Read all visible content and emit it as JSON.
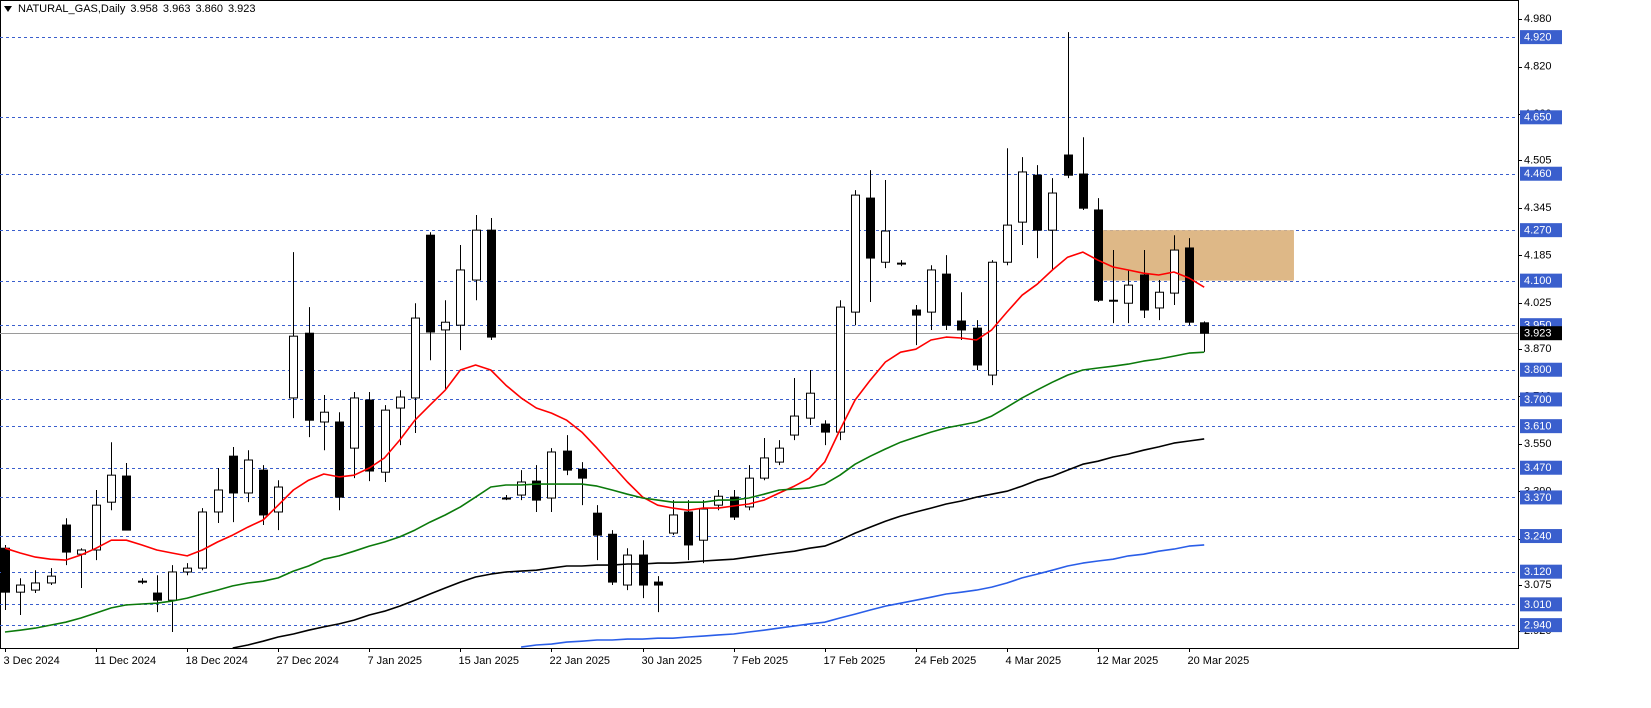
{
  "chart_data": {
    "type": "candlestick",
    "header": {
      "symbol": "NATURAL_GAS,Daily",
      "ohlc": [
        3.958,
        3.963,
        {
          "value": 3.86,
          "label": "3.860"
        },
        3.923
      ]
    },
    "x": [
      "3 Dec 2024",
      null,
      null,
      null,
      null,
      null,
      "11 Dec 2024",
      null,
      null,
      null,
      null,
      null,
      "18 Dec 2024",
      null,
      null,
      null,
      null,
      null,
      "27 Dec 2024",
      null,
      null,
      null,
      null,
      null,
      "7 Jan 2025",
      null,
      null,
      null,
      null,
      null,
      "15 Jan 2025",
      null,
      null,
      null,
      null,
      null,
      "22 Jan 2025",
      null,
      null,
      null,
      null,
      null,
      "30 Jan 2025",
      null,
      null,
      null,
      null,
      null,
      "7 Feb 2025",
      null,
      null,
      null,
      null,
      null,
      "17 Feb 2025",
      null,
      null,
      null,
      null,
      null,
      "24 Feb 2025",
      null,
      null,
      null,
      null,
      null,
      "4 Mar 2025",
      null,
      null,
      null,
      null,
      null,
      "12 Mar 2025",
      null,
      null,
      null,
      null,
      null,
      "20 Mar 2025",
      null
    ],
    "open": [
      3.199,
      3.051,
      3.058,
      3.082,
      3.277,
      3.179,
      3.193,
      3.354,
      3.442,
      3.088,
      3.048,
      3.024,
      3.119,
      3.132,
      3.321,
      3.509,
      3.385,
      3.462,
      3.321,
      3.705,
      3.923,
      3.624,
      3.624,
      3.536,
      3.698,
      3.455,
      3.671,
      3.705,
      4.253,
      3.934,
      3.95,
      4.102,
      4.27,
      3.368,
      3.378,
      3.425,
      3.368,
      3.526,
      3.465,
      3.317,
      3.246,
      3.075,
      3.176,
      3.085,
      3.25,
      3.321,
      3.226,
      3.344,
      3.371,
      3.338,
      3.435,
      3.489,
      3.58,
      3.637,
      3.617,
      3.59,
      3.994,
      4.378,
      4.162,
      4.159,
      4.001,
      3.994,
      4.122,
      3.964,
      3.94,
      3.782,
      4.162,
      4.297,
      4.455,
      4.27,
      4.523,
      4.459,
      4.338,
      4.034,
      4.024,
      4.119,
      4.008,
      4.058,
      4.21,
      3.958
    ],
    "high": [
      3.21,
      3.098,
      3.125,
      3.132,
      3.3,
      3.199,
      3.395,
      3.556,
      3.486,
      3.098,
      3.108,
      3.142,
      3.149,
      3.334,
      3.469,
      3.54,
      3.529,
      3.479,
      3.428,
      4.196,
      4.011,
      3.715,
      3.657,
      3.725,
      3.725,
      3.681,
      3.731,
      4.024,
      4.263,
      4.034,
      4.22,
      4.321,
      4.311,
      3.378,
      3.462,
      3.479,
      3.536,
      3.58,
      3.489,
      3.344,
      3.26,
      3.199,
      3.226,
      3.105,
      3.361,
      3.361,
      3.361,
      3.395,
      3.395,
      3.479,
      3.57,
      3.563,
      3.772,
      3.799,
      3.63,
      4.034,
      4.405,
      4.472,
      4.439,
      4.169,
      4.018,
      4.152,
      4.186,
      4.061,
      3.967,
      4.169,
      4.546,
      4.516,
      4.489,
      4.445,
      4.937,
      4.583,
      4.378,
      4.203,
      4.136,
      4.203,
      4.102,
      4.253,
      4.243,
      3.963
    ],
    "low": [
      2.991,
      2.974,
      3.048,
      3.075,
      3.142,
      3.065,
      3.159,
      3.327,
      3.26,
      3.078,
      2.984,
      2.917,
      3.108,
      3.125,
      3.284,
      3.287,
      3.354,
      3.277,
      3.26,
      3.637,
      3.573,
      3.529,
      3.327,
      3.435,
      3.425,
      3.422,
      3.546,
      3.587,
      3.832,
      3.731,
      3.866,
      4.034,
      3.9,
      3.361,
      3.361,
      3.321,
      3.321,
      3.445,
      3.344,
      3.159,
      3.075,
      3.058,
      3.031,
      2.984,
      3.243,
      3.159,
      3.149,
      3.327,
      3.294,
      3.327,
      3.428,
      3.479,
      3.563,
      3.614,
      3.546,
      3.563,
      3.95,
      4.028,
      4.142,
      4.149,
      3.883,
      3.934,
      3.934,
      3.9,
      3.799,
      3.748,
      4.152,
      4.22,
      4.176,
      4.136,
      4.445,
      4.338,
      4.028,
      3.957,
      3.957,
      3.974,
      3.967,
      4.018,
      3.95,
      3.86
    ],
    "close": [
      3.051,
      3.075,
      3.082,
      3.105,
      3.186,
      3.193,
      3.344,
      3.445,
      3.26,
      3.088,
      3.024,
      3.119,
      3.132,
      3.321,
      3.395,
      3.385,
      3.496,
      3.311,
      3.405,
      3.913,
      3.63,
      3.657,
      3.371,
      3.705,
      3.459,
      3.664,
      3.708,
      3.974,
      3.927,
      3.96,
      4.136,
      4.27,
      3.91,
      3.368,
      3.422,
      3.361,
      3.523,
      3.462,
      3.435,
      3.243,
      3.085,
      3.176,
      3.075,
      3.075,
      3.311,
      3.21,
      3.331,
      3.374,
      3.304,
      3.435,
      3.503,
      3.536,
      3.644,
      3.721,
      3.59,
      4.011,
      4.388,
      4.176,
      4.267,
      4.159,
      3.984,
      4.136,
      3.95,
      3.934,
      3.816,
      4.162,
      4.287,
      4.466,
      4.27,
      4.395,
      4.455,
      4.344,
      4.034,
      4.031,
      4.085,
      4.001,
      4.061,
      4.203,
      3.96,
      3.923
    ],
    "up_color": "#ffffff",
    "down_color": "#000000",
    "wick_color": "#000000",
    "series": [
      {
        "color": "#ff0000",
        "values": [
          3.199,
          3.183,
          3.169,
          3.162,
          3.159,
          3.176,
          3.199,
          3.226,
          3.226,
          3.21,
          3.193,
          3.183,
          3.173,
          3.193,
          3.22,
          3.243,
          3.27,
          3.294,
          3.344,
          3.395,
          3.428,
          3.449,
          3.439,
          3.445,
          3.469,
          3.503,
          3.563,
          3.63,
          3.681,
          3.731,
          3.799,
          3.816,
          3.799,
          3.748,
          3.705,
          3.671,
          3.654,
          3.63,
          3.59,
          3.536,
          3.479,
          3.422,
          3.371,
          3.344,
          3.334,
          3.327,
          3.334,
          3.334,
          3.341,
          3.348,
          3.361,
          3.385,
          3.408,
          3.435,
          3.489,
          3.597,
          3.698,
          3.765,
          3.826,
          3.859,
          3.869,
          3.9,
          3.91,
          3.907,
          3.9,
          3.934,
          3.994,
          4.051,
          4.088,
          4.136,
          4.179,
          4.196,
          4.169,
          4.146,
          4.136,
          4.125,
          4.119,
          4.129,
          4.109,
          4.078
        ]
      },
      {
        "color": "#0b7a0b",
        "values": [
          2.917,
          2.923,
          2.93,
          2.94,
          2.95,
          2.964,
          2.981,
          2.998,
          3.008,
          3.011,
          3.014,
          3.021,
          3.031,
          3.045,
          3.058,
          3.072,
          3.082,
          3.088,
          3.099,
          3.122,
          3.139,
          3.162,
          3.173,
          3.189,
          3.206,
          3.22,
          3.237,
          3.26,
          3.287,
          3.311,
          3.338,
          3.371,
          3.405,
          3.412,
          3.412,
          3.415,
          3.415,
          3.415,
          3.415,
          3.408,
          3.395,
          3.381,
          3.368,
          3.361,
          3.354,
          3.354,
          3.354,
          3.361,
          3.361,
          3.368,
          3.381,
          3.395,
          3.398,
          3.402,
          3.415,
          3.445,
          3.482,
          3.509,
          3.533,
          3.556,
          3.573,
          3.59,
          3.604,
          3.614,
          3.624,
          3.644,
          3.674,
          3.705,
          3.732,
          3.758,
          3.782,
          3.799,
          3.806,
          3.812,
          3.819,
          3.829,
          3.836,
          3.846,
          3.856,
          3.859
        ]
      },
      {
        "color": "#000000",
        "values": [
          null,
          null,
          null,
          null,
          null,
          null,
          null,
          null,
          null,
          null,
          null,
          null,
          null,
          null,
          null,
          2.863,
          2.873,
          2.886,
          2.9,
          2.91,
          2.923,
          2.934,
          2.944,
          2.957,
          2.974,
          2.987,
          3.004,
          3.024,
          3.045,
          3.065,
          3.085,
          3.102,
          3.112,
          3.119,
          3.122,
          3.125,
          3.132,
          3.139,
          3.139,
          3.142,
          3.142,
          3.146,
          3.146,
          3.149,
          3.149,
          3.152,
          3.156,
          3.159,
          3.162,
          3.169,
          3.176,
          3.183,
          3.189,
          3.199,
          3.206,
          3.226,
          3.25,
          3.27,
          3.29,
          3.307,
          3.321,
          3.334,
          3.348,
          3.358,
          3.371,
          3.381,
          3.391,
          3.408,
          3.428,
          3.442,
          3.462,
          3.482,
          3.492,
          3.506,
          3.516,
          3.529,
          3.54,
          3.553,
          3.56,
          3.567
        ]
      },
      {
        "color": "#2a5ee8",
        "values": [
          null,
          null,
          null,
          null,
          null,
          null,
          null,
          null,
          null,
          null,
          null,
          null,
          null,
          null,
          null,
          null,
          null,
          null,
          null,
          null,
          null,
          null,
          null,
          null,
          null,
          null,
          null,
          null,
          null,
          null,
          null,
          null,
          null,
          null,
          2.866,
          2.873,
          2.876,
          2.883,
          2.886,
          2.89,
          2.89,
          2.893,
          2.893,
          2.896,
          2.896,
          2.9,
          2.903,
          2.907,
          2.91,
          2.917,
          2.923,
          2.93,
          2.937,
          2.944,
          2.95,
          2.964,
          2.977,
          2.991,
          3.004,
          3.014,
          3.024,
          3.034,
          3.045,
          3.051,
          3.058,
          3.068,
          3.082,
          3.099,
          3.112,
          3.125,
          3.139,
          3.149,
          3.156,
          3.162,
          3.173,
          3.179,
          3.189,
          3.196,
          3.206,
          3.21
        ]
      }
    ],
    "ylim": [
      2.863,
      5.045
    ],
    "yticks": [
      {
        "value": 4.98,
        "label": "4.980"
      },
      {
        "value": 4.82,
        "label": "4.820"
      },
      {
        "value": 4.66,
        "label": "4.660"
      },
      4.505,
      4.345,
      4.185,
      4.025,
      {
        "value": 3.87,
        "label": "3.870"
      },
      {
        "value": 3.71,
        "label": "3.710"
      },
      {
        "value": 3.55,
        "label": "3.550"
      },
      {
        "value": 3.39,
        "label": "3.390"
      },
      {
        "value": 3.23,
        "label": "3.230"
      },
      3.075,
      {
        "value": 2.92,
        "label": "2.920"
      }
    ],
    "level_color": "#3a5fcd",
    "levels": [
      {
        "value": 4.92,
        "label": "4.920"
      },
      {
        "value": 4.65,
        "label": "4.650"
      },
      {
        "value": 4.46,
        "label": "4.460"
      },
      {
        "value": 4.27,
        "label": "4.270"
      },
      {
        "value": 4.1,
        "label": "4.100"
      },
      {
        "value": 3.95,
        "label": "3.950"
      },
      {
        "value": 3.8,
        "label": "3.800"
      },
      {
        "value": 3.7,
        "label": "3.700"
      },
      {
        "value": 3.61,
        "label": "3.610"
      },
      {
        "value": 3.47,
        "label": "3.470"
      },
      {
        "value": 3.37,
        "label": "3.370"
      },
      {
        "value": 3.24,
        "label": "3.240"
      },
      {
        "value": 3.12,
        "label": "3.120"
      },
      {
        "value": 3.01,
        "label": "3.010"
      },
      {
        "value": 2.94,
        "label": "2.940"
      }
    ],
    "zone": {
      "low": 4.1,
      "high": 4.27,
      "color": "#deb887"
    },
    "last_price": 3.923
  }
}
